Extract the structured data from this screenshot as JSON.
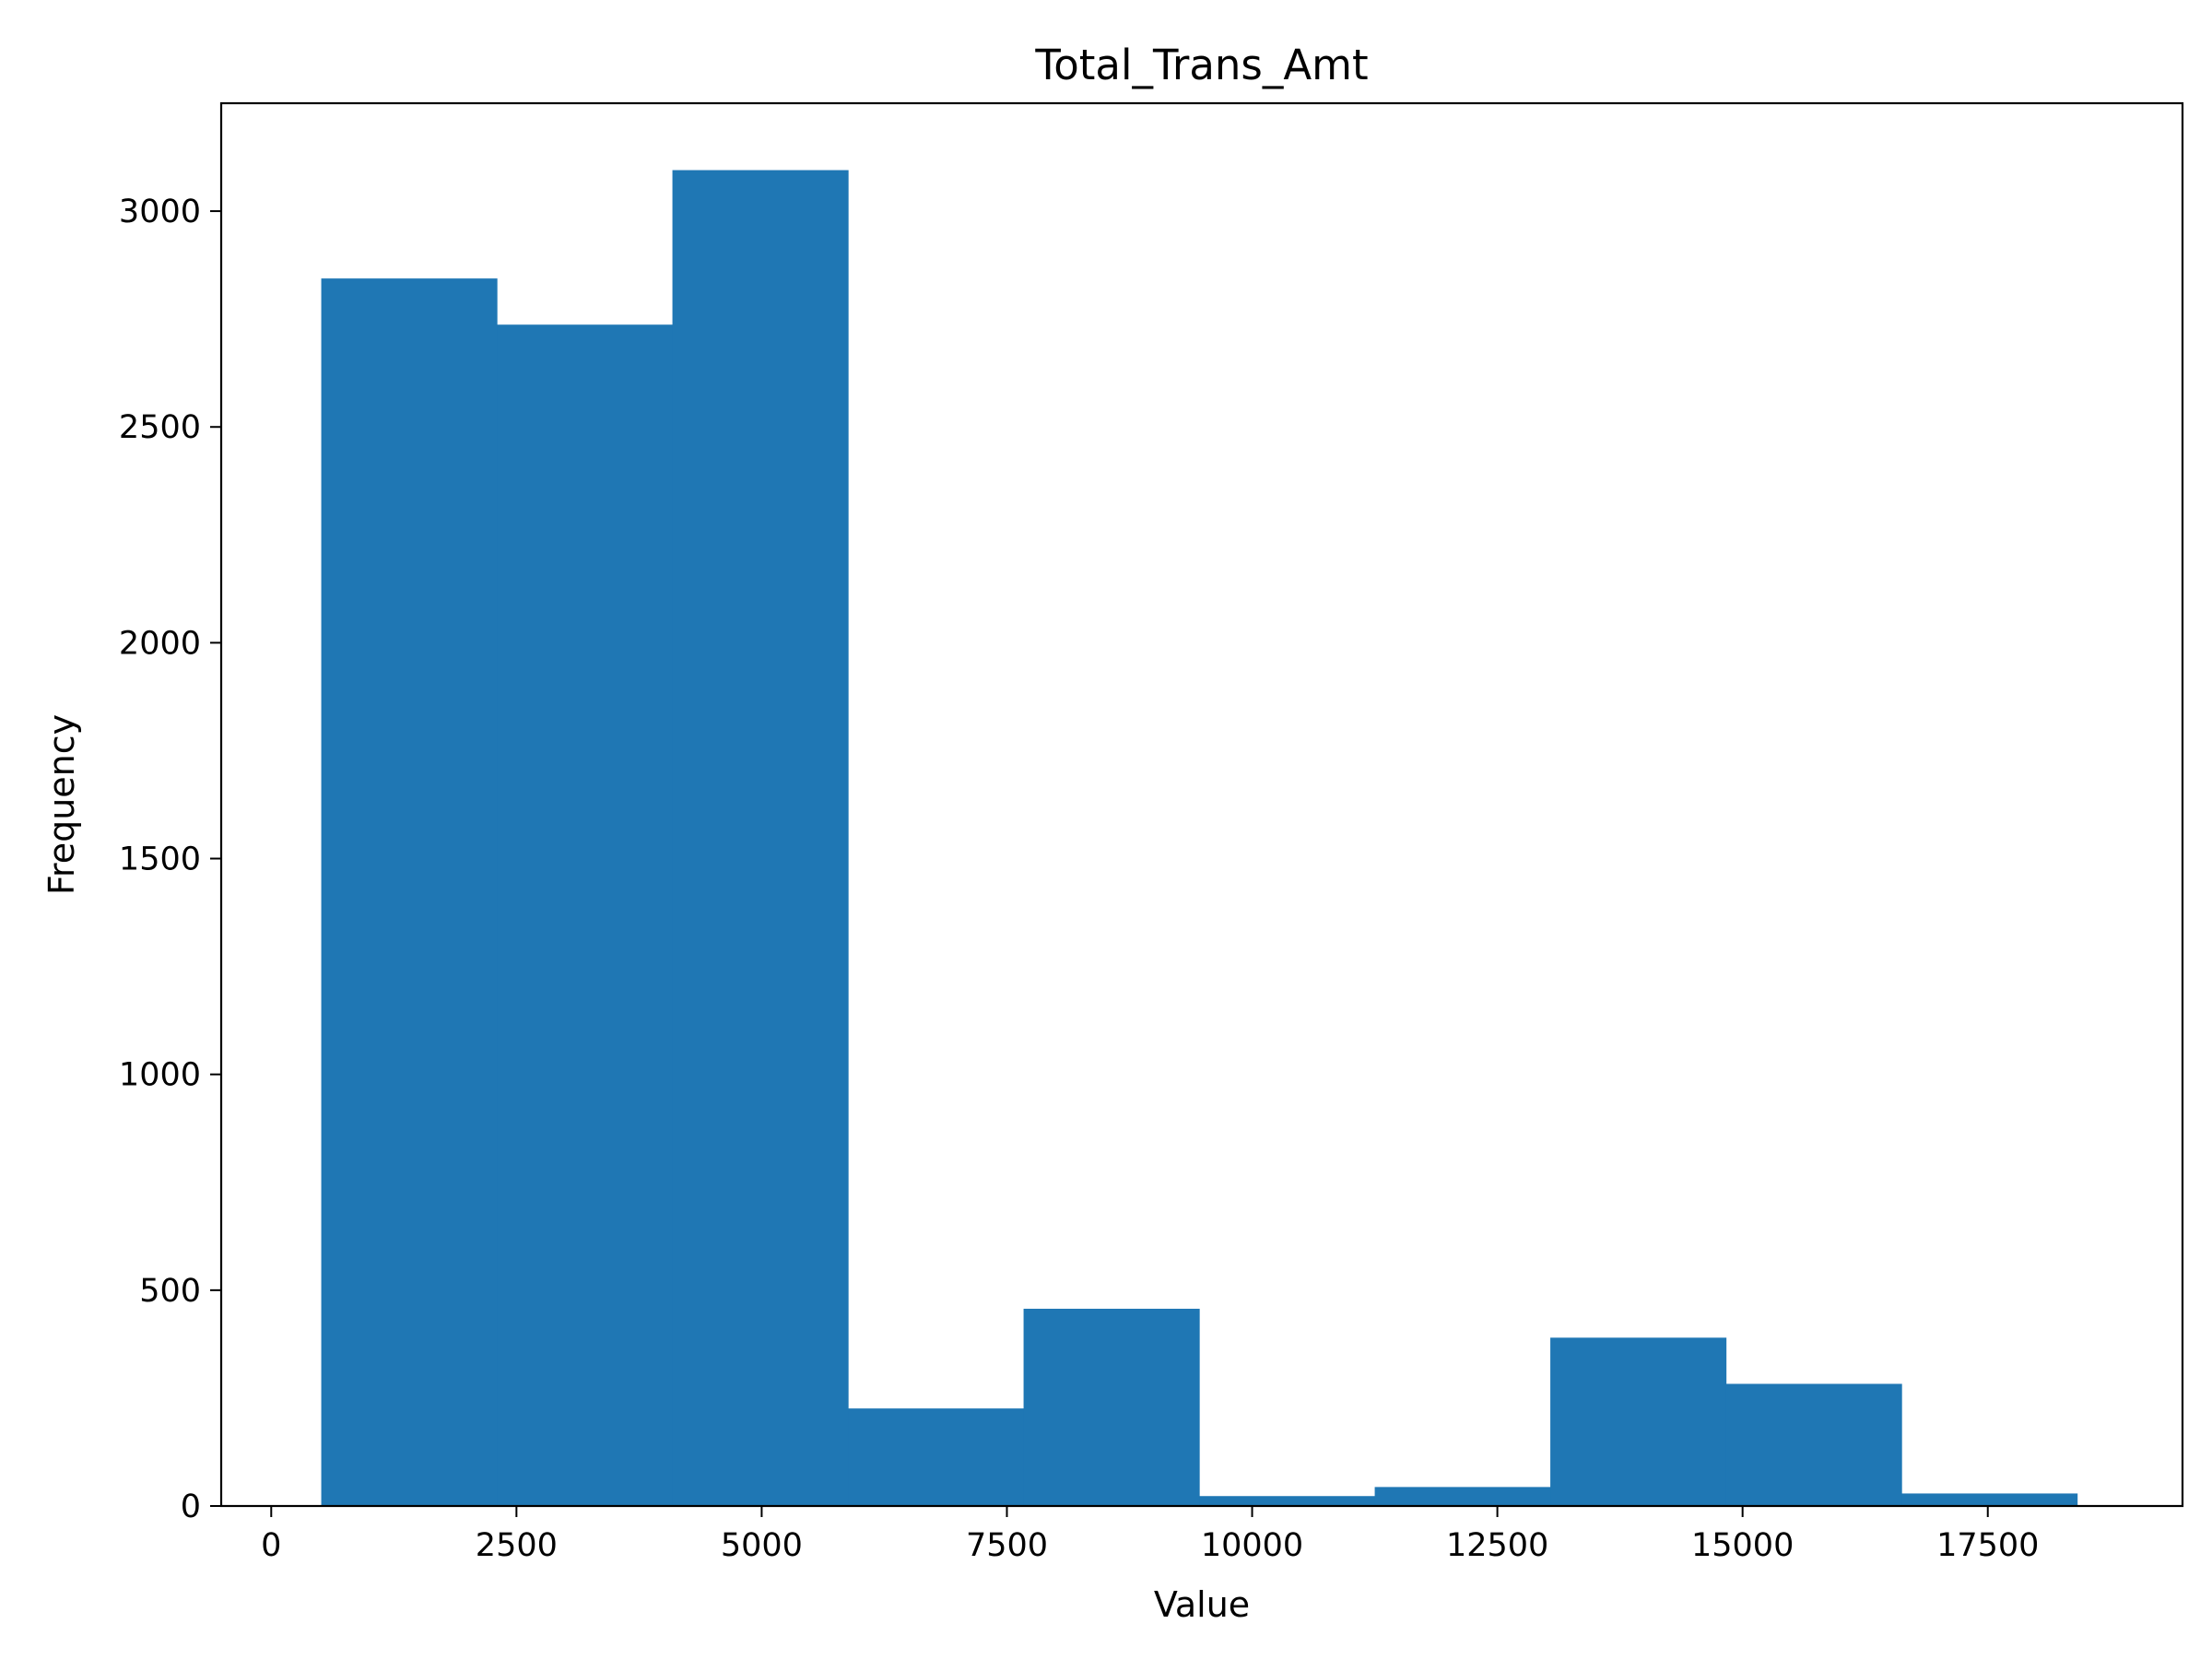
{
  "chart_data": {
    "type": "bar",
    "histogram": true,
    "title": "Total_Trans_Amt",
    "xlabel": "Value",
    "ylabel": "Frequency",
    "bar_color": "#1f77b4",
    "xlim": [
      -510,
      19485
    ],
    "ylim": [
      0,
      3250
    ],
    "x_ticks": [
      0,
      2500,
      5000,
      7500,
      10000,
      12500,
      15000,
      17500
    ],
    "y_ticks": [
      0,
      500,
      1000,
      1500,
      2000,
      2500,
      3000
    ],
    "x_tick_labels": [
      "0",
      "2500",
      "5000",
      "7500",
      "10000",
      "12500",
      "15000",
      "17500"
    ],
    "y_tick_labels": [
      "0",
      "500",
      "1000",
      "1500",
      "2000",
      "2500",
      "3000"
    ],
    "bin_edges": [
      510,
      2300,
      4090,
      5880,
      7670,
      9460,
      11250,
      13040,
      14830,
      16620,
      18410
    ],
    "values": [
      2844,
      2737,
      3095,
      226,
      457,
      23,
      44,
      390,
      283,
      29
    ],
    "grid": false,
    "legend": "none"
  }
}
